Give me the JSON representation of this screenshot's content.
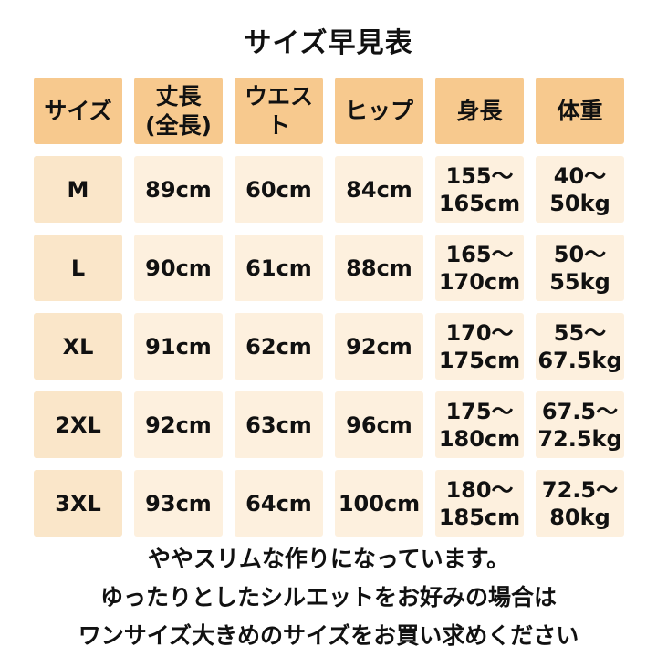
{
  "title": "サイズ早見表",
  "table": {
    "headers": [
      "サイズ",
      "丈長\n(全長)",
      "ウエスト",
      "ヒップ",
      "身長",
      "体重"
    ],
    "rows": [
      [
        "M",
        "89cm",
        "60cm",
        "84cm",
        "155〜\n165cm",
        "40〜\n50kg"
      ],
      [
        "L",
        "90cm",
        "61cm",
        "88cm",
        "165〜\n170cm",
        "50〜\n55kg"
      ],
      [
        "XL",
        "91cm",
        "62cm",
        "92cm",
        "170〜\n175cm",
        "55〜\n67.5kg"
      ],
      [
        "2XL",
        "92cm",
        "63cm",
        "96cm",
        "175〜\n180cm",
        "67.5〜\n72.5kg"
      ],
      [
        "3XL",
        "93cm",
        "64cm",
        "100cm",
        "180〜\n185cm",
        "72.5〜\n80kg"
      ]
    ]
  },
  "notes": [
    "ややスリムな作りになっています。",
    "ゆったりとしたシルエットをお好みの場合は",
    "ワンサイズ大きめのサイズをお買い求めください"
  ],
  "colors": {
    "header_cell": "#f7c98e",
    "size_cell": "#fae6c9",
    "data_cell": "#fdf0de",
    "background": "#ffffff",
    "text": "#111111"
  }
}
